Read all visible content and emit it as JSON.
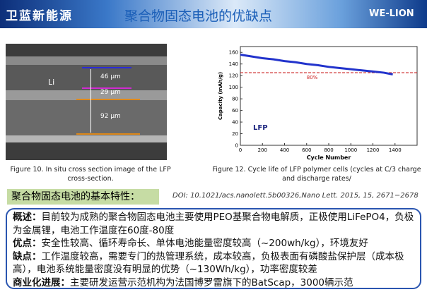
{
  "header": {
    "logo": "卫蓝新能源",
    "title": "聚合物固态电池的优缺点",
    "brand": "WE-LION"
  },
  "figure_left": {
    "labels": [
      "Li",
      "46 µm",
      "29 µm",
      "92 µm"
    ],
    "caption": "Figure 10. In situ cross section image of the LFP cross-section."
  },
  "chart_data": {
    "type": "line",
    "x": [
      0,
      100,
      200,
      300,
      400,
      500,
      600,
      700,
      800,
      900,
      1000,
      1100,
      1200,
      1300,
      1380
    ],
    "values": [
      156,
      153,
      150,
      148,
      145,
      143,
      140,
      138,
      135,
      133,
      131,
      129,
      127,
      125,
      122
    ],
    "color": "#2233cc",
    "xlim": [
      0,
      1600
    ],
    "ylim": [
      0,
      170
    ],
    "xticks": [
      0,
      200,
      400,
      600,
      800,
      1000,
      1200,
      1400
    ],
    "yticks": [
      0,
      20,
      40,
      60,
      80,
      100,
      120,
      140,
      160
    ],
    "xlabel": "Cycle Number",
    "ylabel": "Capacity (mAh/g)",
    "annotation": "LFP",
    "reference": {
      "value": 125,
      "label": "80%",
      "color": "#cc2222"
    }
  },
  "figure_right": {
    "caption": "Figure 12. Cycle life of LFP polymer cells (cycles at C/3 charge and discharge rates/"
  },
  "section": {
    "heading": "聚合物固态电池的基本特性：",
    "doi": "DOI: 10.1021/acs.nanolett.5b00326,Nano Lett. 2015, 15, 2671−2678"
  },
  "summary": [
    {
      "label": "概述：",
      "text": "目前较为成熟的聚合物固态电池主要使用PEO基聚合物电解质，正极使用LiFePO4，负极为金属锂，电池工作温度在60度-80度"
    },
    {
      "label": "优点：",
      "text": "安全性较高、循环寿命长、单体电池能量密度较高（~200wh/kg），环境友好"
    },
    {
      "label": "缺点：",
      "text": "工作温度较高，需要专门的热管理系统，成本较高，负极表面有磷酸盐保护层（成本极高），电池系统能量密度没有明显的优势（~130Wh/kg），功率密度较差"
    },
    {
      "label": "商业化进展：",
      "text": "主要研发运营示范机构为法国博罗雷旗下的BatScap，3000辆示范"
    }
  ]
}
